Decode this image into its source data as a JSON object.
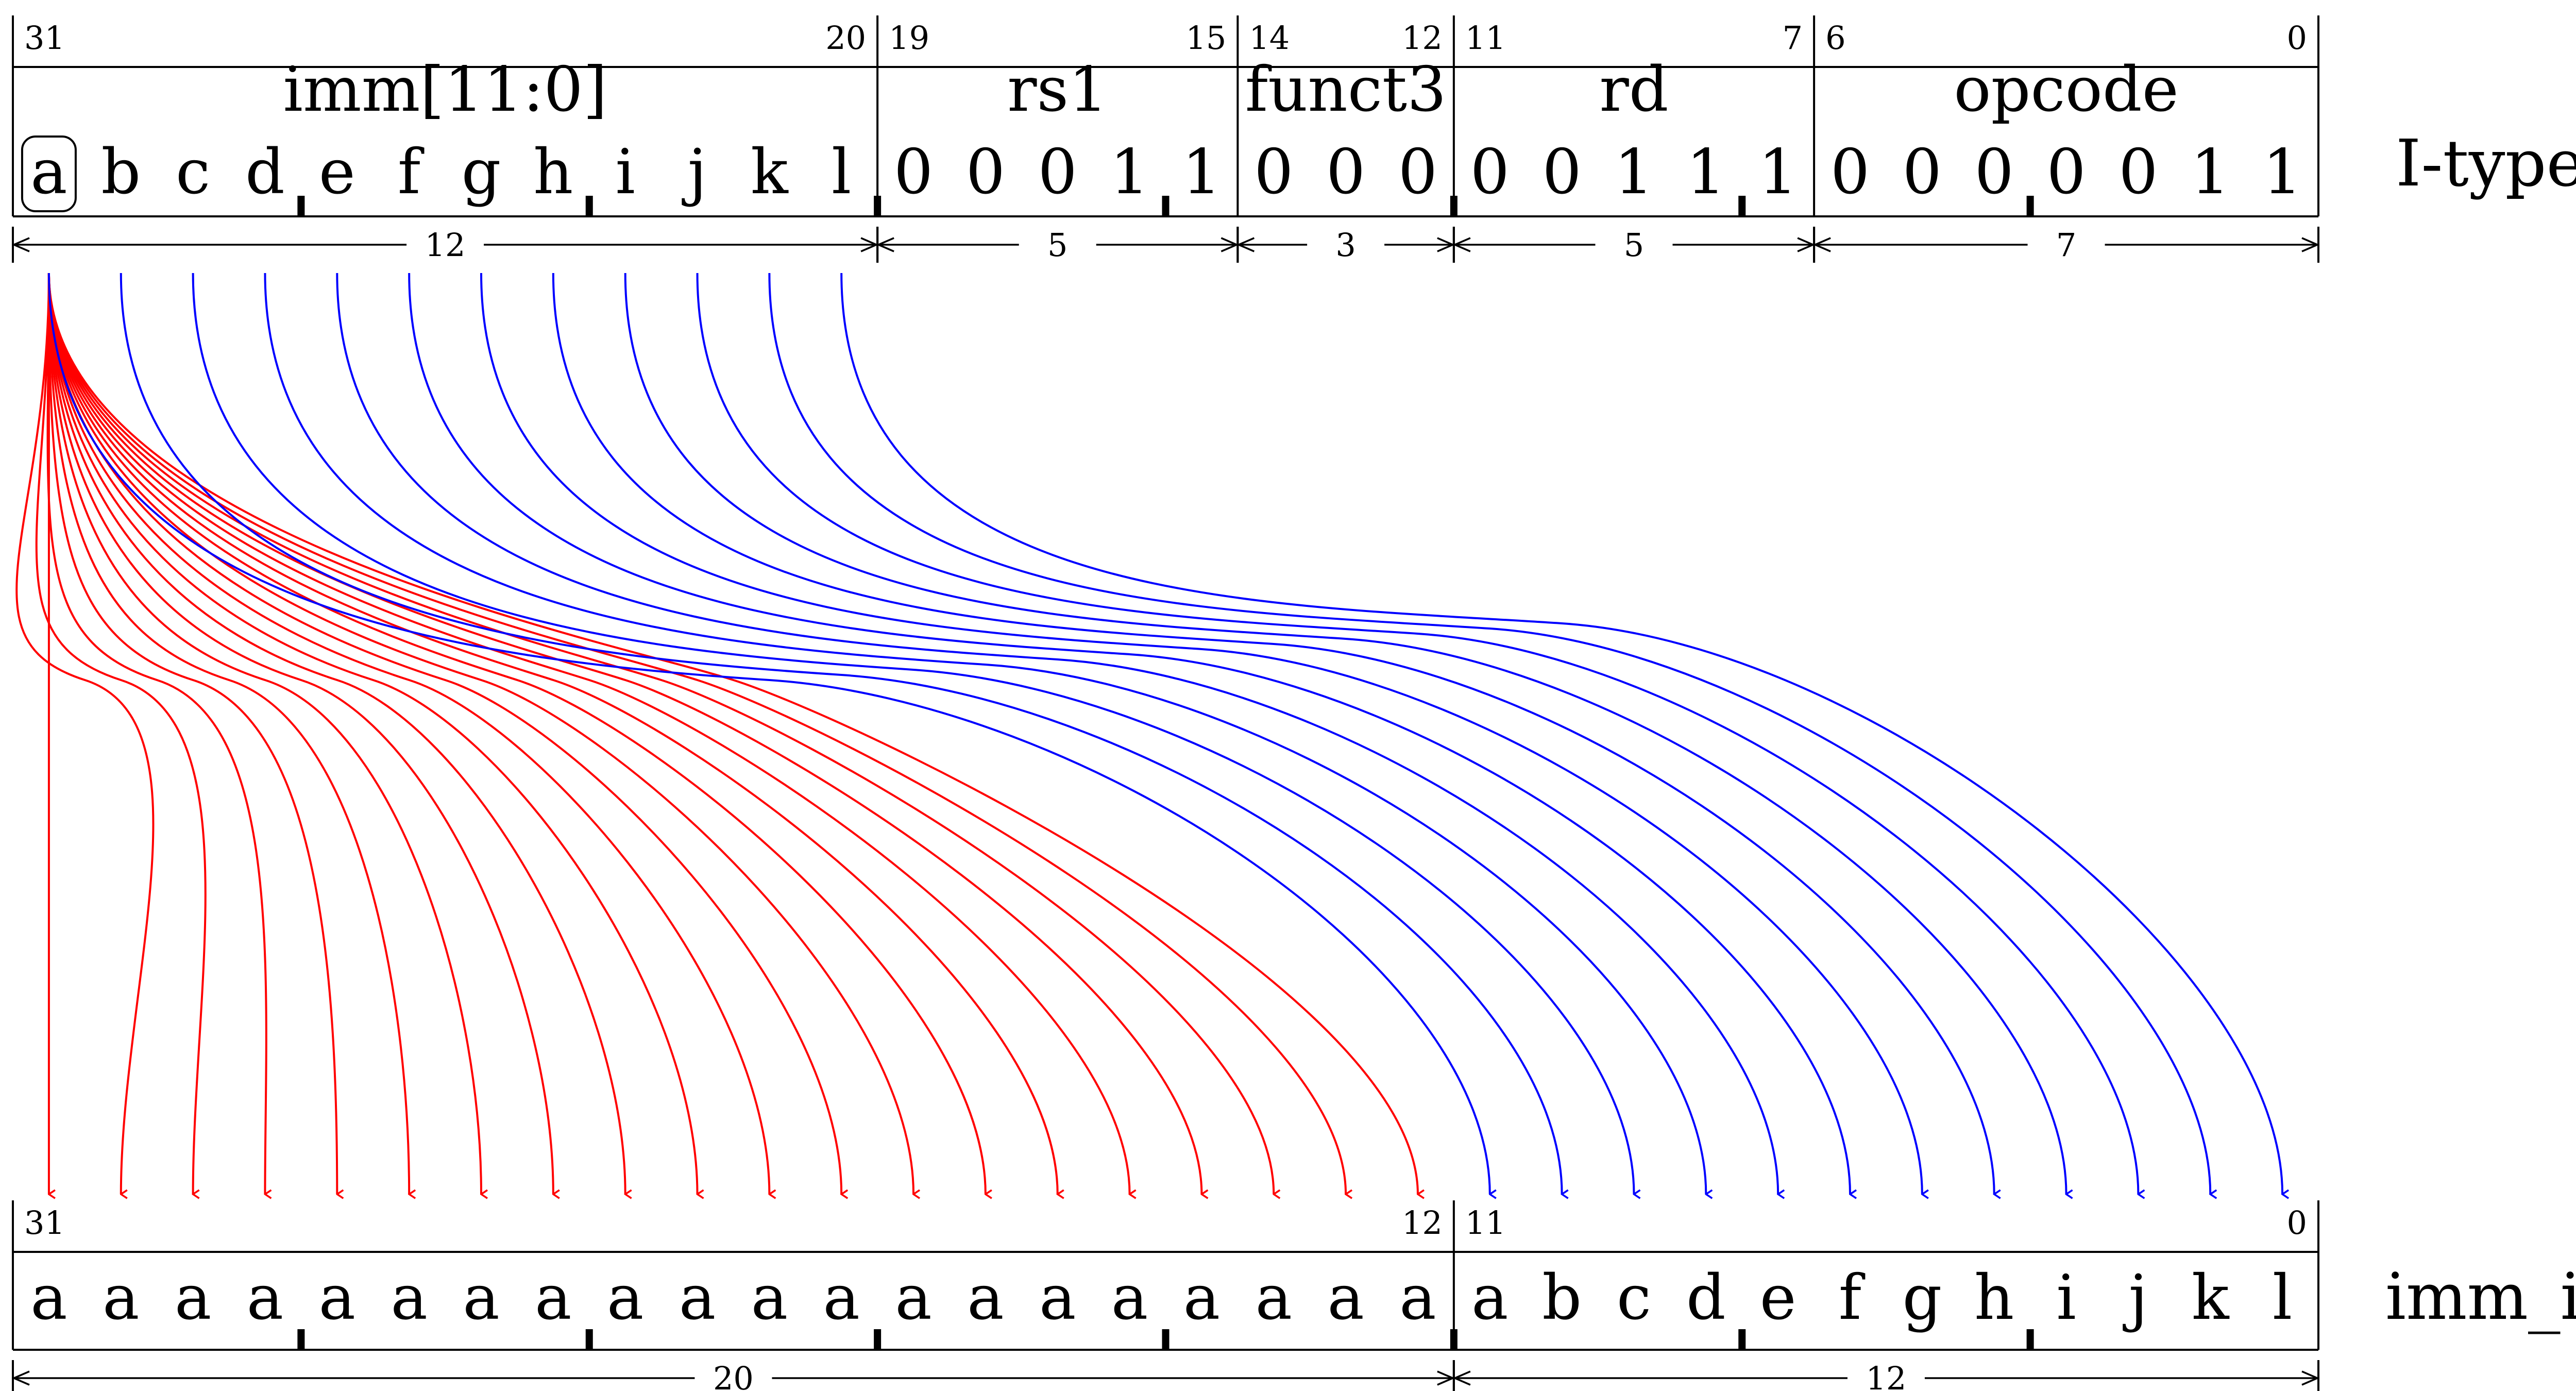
{
  "colors": {
    "ink": "#000000",
    "sign_extend": "#ff0000",
    "direct": "#0000ff"
  },
  "itype": {
    "label": "I-type",
    "fields": [
      {
        "name": "imm[11:0]",
        "hi": "31",
        "lo": "20",
        "width": "12",
        "bits": [
          "a",
          "b",
          "c",
          "d",
          "e",
          "f",
          "g",
          "h",
          "i",
          "j",
          "k",
          "l"
        ]
      },
      {
        "name": "rs1",
        "hi": "19",
        "lo": "15",
        "width": "5",
        "bits": [
          "0",
          "0",
          "0",
          "1",
          "1"
        ]
      },
      {
        "name": "funct3",
        "hi": "14",
        "lo": "12",
        "width": "3",
        "bits": [
          "0",
          "0",
          "0"
        ]
      },
      {
        "name": "rd",
        "hi": "11",
        "lo": "7",
        "width": "5",
        "bits": [
          "0",
          "0",
          "1",
          "1",
          "1"
        ]
      },
      {
        "name": "opcode",
        "hi": "6",
        "lo": "0",
        "width": "7",
        "bits": [
          "0",
          "0",
          "0",
          "0",
          "0",
          "1",
          "1"
        ]
      }
    ]
  },
  "imm": {
    "label": "imm_i",
    "hi_label": "31",
    "mid_hi_label": "12",
    "mid_lo_label": "11",
    "lo_label": "0",
    "bits": [
      "a",
      "a",
      "a",
      "a",
      "a",
      "a",
      "a",
      "a",
      "a",
      "a",
      "a",
      "a",
      "a",
      "a",
      "a",
      "a",
      "a",
      "a",
      "a",
      "a",
      "a",
      "b",
      "c",
      "d",
      "e",
      "f",
      "g",
      "h",
      "i",
      "j",
      "k",
      "l"
    ],
    "widths": [
      {
        "label": "20",
        "from": 0,
        "to": 20
      },
      {
        "label": "12",
        "from": 20,
        "to": 32
      }
    ]
  },
  "mapping": {
    "sign_bit_source_index": 0,
    "sign_extend_count": 20,
    "direct_source_indices": [
      0,
      1,
      2,
      3,
      4,
      5,
      6,
      7,
      8,
      9,
      10,
      11
    ]
  }
}
